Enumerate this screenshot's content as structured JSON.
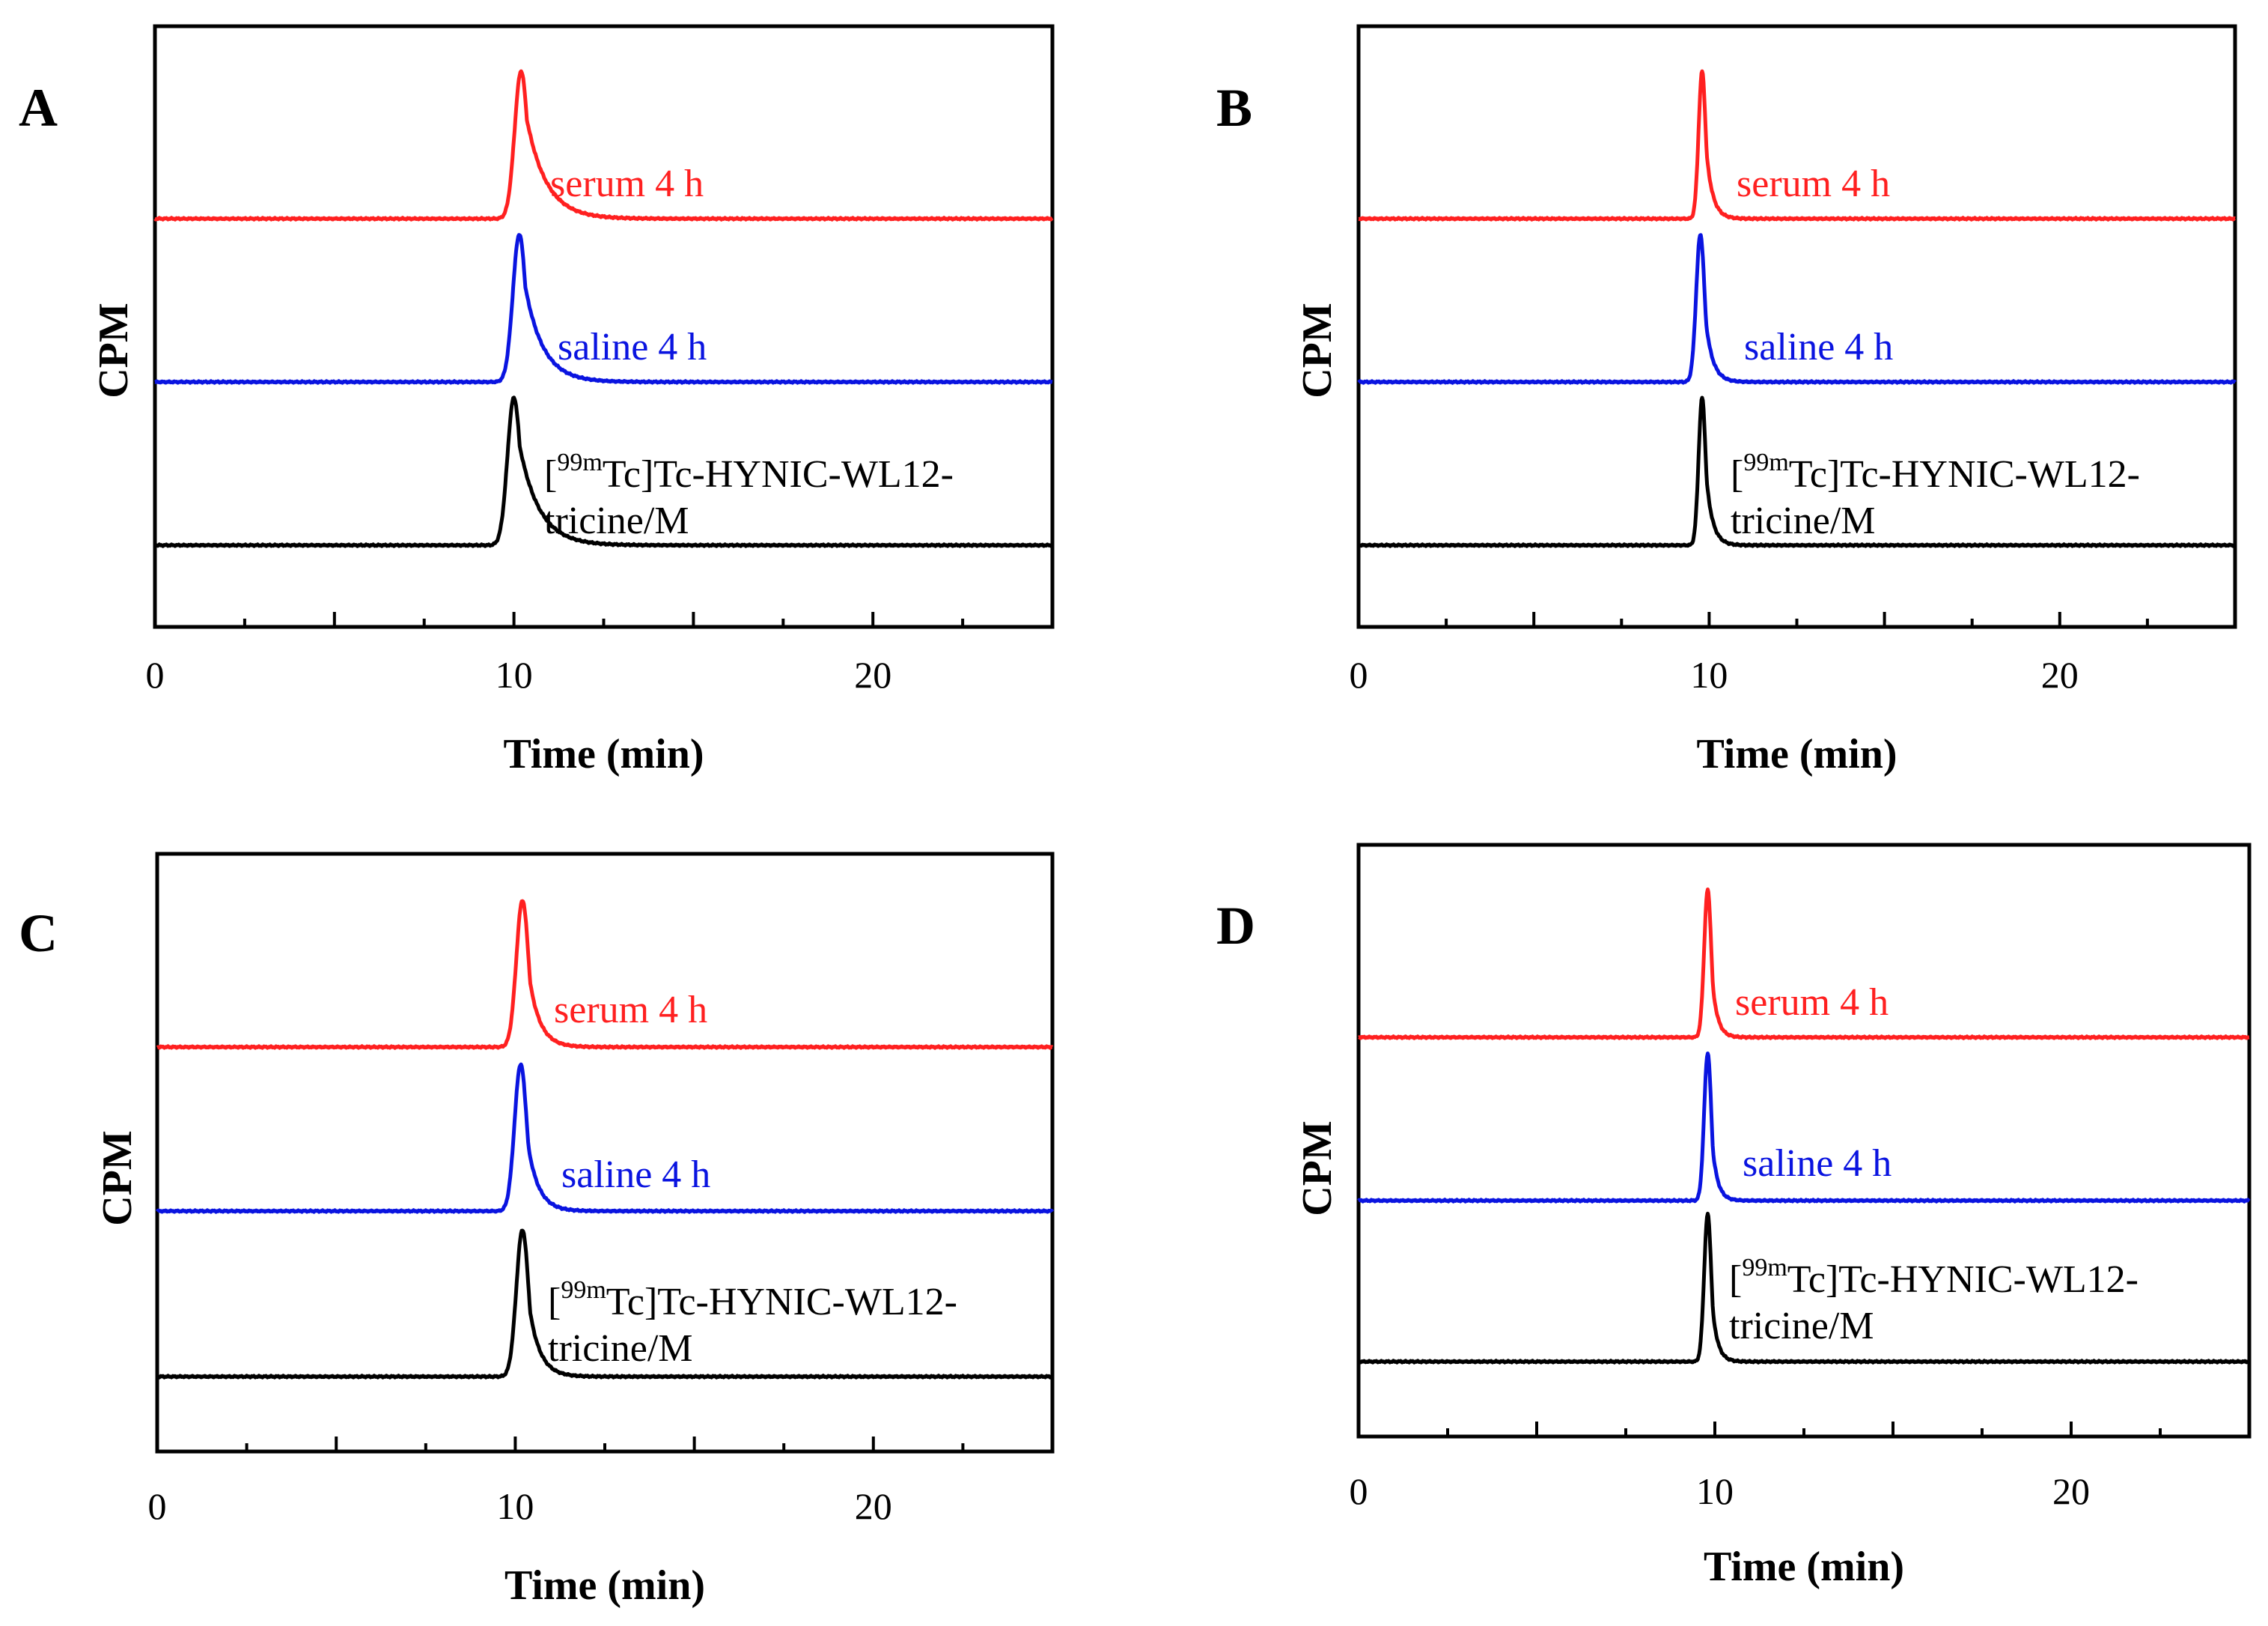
{
  "colors": {
    "serum": "#ff2020",
    "saline": "#0a14e0",
    "reference": "#000000",
    "axis": "#000000"
  },
  "chart_data": [
    {
      "panel": "A",
      "type": "line",
      "xlabel": "Time (min)",
      "ylabel": "CPM",
      "xlim": [
        0,
        25
      ],
      "xticks": [
        "0",
        "10",
        "20"
      ],
      "series": [
        {
          "name": "serum 4 h",
          "label": "serum 4 h",
          "peak_time": 10.2,
          "peak_width": 0.18,
          "tail": 0.55
        },
        {
          "name": "saline 4 h",
          "label": "saline 4 h",
          "peak_time": 10.15,
          "peak_width": 0.18,
          "tail": 0.5
        },
        {
          "name": "[99mTc]Tc-HYNIC-WL12-tricine/M",
          "label_sup": "99m",
          "label_line1": "Tc]Tc-HYNIC-WL12-",
          "label_line2": "tricine/M",
          "peak_time": 10.0,
          "peak_width": 0.18,
          "tail": 0.55
        }
      ]
    },
    {
      "panel": "B",
      "type": "line",
      "xlabel": "Time (min)",
      "ylabel": "CPM",
      "xlim": [
        0,
        25
      ],
      "xticks": [
        "0",
        "10",
        "20"
      ],
      "series": [
        {
          "name": "serum 4 h",
          "label": "serum 4 h",
          "peak_time": 9.8,
          "peak_width": 0.1,
          "tail": 0.18
        },
        {
          "name": "saline 4 h",
          "label": "saline 4 h",
          "peak_time": 9.75,
          "peak_width": 0.12,
          "tail": 0.2
        },
        {
          "name": "[99mTc]Tc-HYNIC-WL12-tricine/M",
          "label_sup": "99m",
          "label_line1": "Tc]Tc-HYNIC-WL12-",
          "label_line2": "tricine/M",
          "peak_time": 9.8,
          "peak_width": 0.1,
          "tail": 0.18
        }
      ]
    },
    {
      "panel": "C",
      "type": "line",
      "xlabel": "Time (min)",
      "ylabel": "CPM",
      "xlim": [
        0,
        25
      ],
      "xticks": [
        "0",
        "10",
        "20"
      ],
      "series": [
        {
          "name": "serum 4 h",
          "label": "serum 4 h",
          "peak_time": 10.2,
          "peak_width": 0.17,
          "tail": 0.3
        },
        {
          "name": "saline 4 h",
          "label": "saline 4 h",
          "peak_time": 10.15,
          "peak_width": 0.17,
          "tail": 0.3
        },
        {
          "name": "[99mTc]Tc-HYNIC-WL12-tricine/M",
          "label_sup": "99m",
          "label_line1": "Tc]Tc-HYNIC-WL12-",
          "label_line2": "tricine/M",
          "peak_time": 10.2,
          "peak_width": 0.17,
          "tail": 0.3
        }
      ]
    },
    {
      "panel": "D",
      "type": "line",
      "xlabel": "Time (min)",
      "ylabel": "CPM",
      "xlim": [
        0,
        25
      ],
      "xticks": [
        "0",
        "10",
        "20"
      ],
      "series": [
        {
          "name": "serum 4 h",
          "label": "serum 4 h",
          "peak_time": 9.8,
          "peak_width": 0.1,
          "tail": 0.15
        },
        {
          "name": "saline 4 h",
          "label": "saline 4 h",
          "peak_time": 9.8,
          "peak_width": 0.1,
          "tail": 0.15
        },
        {
          "name": "[99mTc]Tc-HYNIC-WL12-tricine/M",
          "label_sup": "99m",
          "label_line1": "Tc]Tc-HYNIC-WL12-",
          "label_line2": "tricine/M",
          "peak_time": 9.8,
          "peak_width": 0.1,
          "tail": 0.15
        }
      ]
    }
  ]
}
